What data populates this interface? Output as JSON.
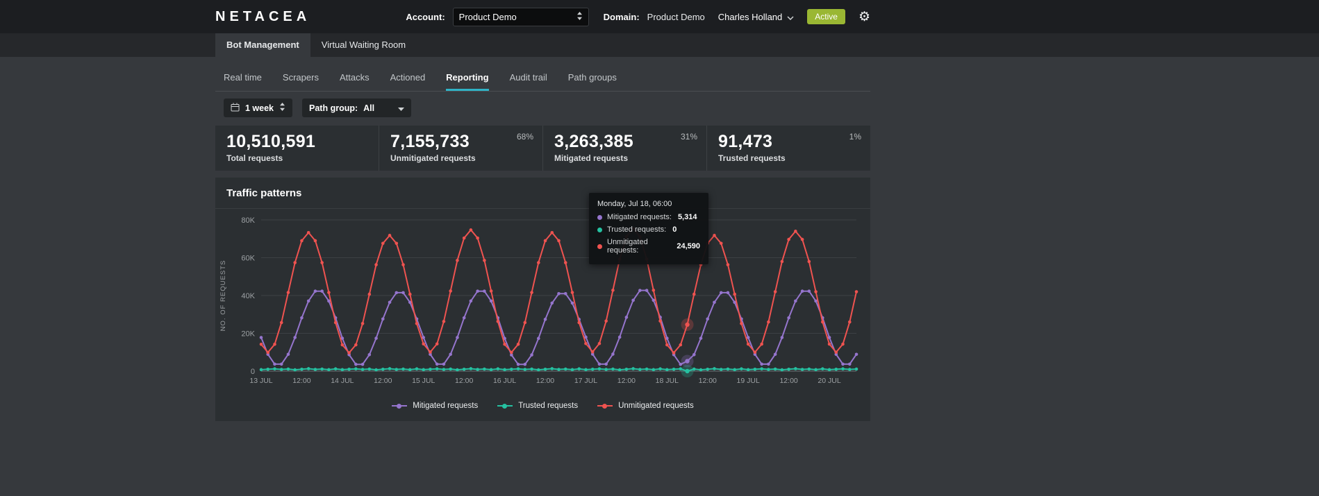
{
  "topbar": {
    "logo": "NETACEA",
    "account_label": "Account:",
    "account_value": "Product Demo",
    "domain_label": "Domain:",
    "domain_value": "Product Demo",
    "user_name": "Charles Holland",
    "status_badge": "Active",
    "settings_icon": "⚙"
  },
  "product_tabs": [
    {
      "label": "Bot Management",
      "active": true
    },
    {
      "label": "Virtual Waiting Room",
      "active": false
    }
  ],
  "sub_nav": [
    {
      "label": "Real time",
      "active": false
    },
    {
      "label": "Scrapers",
      "active": false
    },
    {
      "label": "Attacks",
      "active": false
    },
    {
      "label": "Actioned",
      "active": false
    },
    {
      "label": "Reporting",
      "active": true
    },
    {
      "label": "Audit trail",
      "active": false
    },
    {
      "label": "Path groups",
      "active": false
    }
  ],
  "filters": {
    "date_range": "1 week",
    "path_group_label": "Path group:",
    "path_group_value": "All"
  },
  "stats": [
    {
      "value": "10,510,591",
      "label": "Total requests",
      "percent": ""
    },
    {
      "value": "7,155,733",
      "label": "Unmitigated requests",
      "percent": "68%"
    },
    {
      "value": "3,263,385",
      "label": "Mitigated requests",
      "percent": "31%"
    },
    {
      "value": "91,473",
      "label": "Trusted requests",
      "percent": "1%"
    }
  ],
  "panel": {
    "title": "Traffic patterns"
  },
  "tooltip": {
    "title": "Monday, Jul 18, 06:00",
    "rows": [
      {
        "label": "Mitigated requests:",
        "value": "5,314"
      },
      {
        "label": "Trusted requests:",
        "value": "0"
      },
      {
        "label": "Unmitigated requests:",
        "value": "24,590"
      }
    ]
  },
  "colors": {
    "accent_underline": "#2fb3c6",
    "badge_bg": "#9ab733",
    "mitigated": "#9575cd",
    "trusted": "#25c1a1",
    "unmitigated": "#ef5350"
  },
  "chart_data": {
    "type": "line",
    "title": "Traffic patterns",
    "xlabel": "",
    "ylabel": "NO. OF REQUESTS",
    "ylim": [
      0,
      80000
    ],
    "values_unit": "thousands_of_requests",
    "grid": "horizontal",
    "legend_position": "bottom",
    "x_start": "Jul 13 00:00",
    "x_interval_hours": 2,
    "hover_index": 63,
    "y_ticks": [
      {
        "v": 0,
        "label": "0"
      },
      {
        "v": 20,
        "label": "20K"
      },
      {
        "v": 40,
        "label": "40K"
      },
      {
        "v": 60,
        "label": "60K"
      },
      {
        "v": 80,
        "label": "80K"
      }
    ],
    "x_ticks": [
      {
        "index": 0,
        "label": "13 JUL"
      },
      {
        "index": 6,
        "label": "12:00"
      },
      {
        "index": 12,
        "label": "14 JUL"
      },
      {
        "index": 18,
        "label": "12:00"
      },
      {
        "index": 24,
        "label": "15 JUL"
      },
      {
        "index": 30,
        "label": "12:00"
      },
      {
        "index": 36,
        "label": "16 JUL"
      },
      {
        "index": 42,
        "label": "12:00"
      },
      {
        "index": 48,
        "label": "17 JUL"
      },
      {
        "index": 54,
        "label": "12:00"
      },
      {
        "index": 60,
        "label": "18 JUL"
      },
      {
        "index": 66,
        "label": "12:00"
      },
      {
        "index": 72,
        "label": "19 JUL"
      },
      {
        "index": 78,
        "label": "12:00"
      },
      {
        "index": 84,
        "label": "20 JUL"
      }
    ],
    "series": [
      {
        "name": "Mitigated requests",
        "color": "#9575cd",
        "values": [
          17.8,
          8.9,
          3.7,
          3.7,
          8.9,
          17.8,
          28.2,
          37.1,
          42.3,
          42.3,
          37.1,
          28.2,
          17.4,
          8.7,
          3.6,
          3.6,
          8.7,
          17.4,
          27.6,
          36.4,
          41.5,
          41.5,
          36.4,
          27.6,
          17.8,
          8.9,
          3.7,
          3.7,
          8.9,
          17.8,
          28.2,
          37.1,
          42.3,
          42.3,
          37.1,
          28.2,
          17.3,
          8.6,
          3.6,
          3.6,
          8.6,
          17.3,
          27.4,
          36.0,
          41.0,
          41.0,
          36.0,
          27.4,
          18.0,
          9.0,
          3.7,
          3.7,
          9.0,
          18.0,
          28.5,
          37.5,
          42.7,
          42.7,
          37.5,
          28.5,
          17.4,
          8.7,
          3.6,
          5.3,
          8.7,
          17.4,
          27.6,
          36.4,
          41.5,
          41.5,
          36.4,
          27.6,
          17.8,
          8.9,
          3.7,
          3.7,
          8.9,
          17.8,
          28.2,
          37.1,
          42.3,
          42.3,
          37.1,
          28.2,
          17.8,
          8.9,
          3.7,
          3.7,
          8.9
        ]
      },
      {
        "name": "Trusted requests",
        "color": "#25c1a1",
        "values": [
          0.8,
          1.0,
          1.2,
          0.9,
          1.1,
          0.7,
          1.0,
          1.3,
          0.9,
          1.1,
          0.8,
          1.2,
          0.8,
          1.0,
          1.2,
          0.9,
          1.1,
          0.7,
          1.0,
          1.3,
          0.9,
          1.1,
          0.8,
          1.2,
          0.8,
          1.0,
          1.2,
          0.9,
          1.1,
          0.7,
          1.0,
          1.3,
          0.9,
          1.1,
          0.8,
          1.2,
          0.8,
          1.0,
          1.2,
          0.9,
          1.1,
          0.7,
          1.0,
          1.3,
          0.9,
          1.1,
          0.8,
          1.2,
          0.8,
          1.0,
          1.2,
          0.9,
          1.1,
          0.7,
          1.0,
          1.3,
          0.9,
          1.1,
          0.8,
          1.2,
          0.8,
          1.0,
          1.2,
          0.0,
          1.1,
          0.7,
          1.0,
          1.3,
          0.9,
          1.1,
          0.8,
          1.2,
          0.8,
          1.0,
          1.2,
          0.9,
          1.1,
          0.7,
          1.0,
          1.3,
          0.9,
          1.1,
          0.8,
          1.2,
          0.8,
          1.0,
          1.2,
          0.9,
          1.1
        ]
      },
      {
        "name": "Unmitigated requests",
        "color": "#ef5350",
        "values": [
          14.2,
          9.9,
          14.2,
          25.7,
          41.6,
          57.4,
          69.0,
          73.3,
          69.0,
          57.4,
          41.6,
          25.7,
          13.9,
          9.7,
          13.9,
          25.2,
          40.7,
          56.3,
          67.6,
          71.8,
          67.6,
          56.3,
          40.7,
          25.2,
          14.4,
          10.1,
          14.4,
          26.3,
          42.4,
          58.6,
          70.4,
          74.7,
          70.4,
          58.6,
          42.4,
          26.3,
          14.2,
          9.9,
          14.2,
          25.7,
          41.6,
          57.4,
          69.0,
          73.3,
          69.0,
          57.4,
          41.6,
          25.7,
          14.6,
          10.2,
          14.6,
          26.5,
          42.8,
          59.2,
          71.1,
          75.5,
          71.1,
          59.2,
          42.8,
          26.5,
          13.9,
          9.7,
          13.9,
          24.6,
          40.7,
          56.3,
          67.6,
          71.8,
          67.6,
          56.3,
          40.7,
          25.2,
          14.3,
          10.0,
          14.3,
          26.0,
          42.0,
          58.0,
          69.7,
          74.0,
          69.7,
          58.0,
          42.0,
          26.0,
          14.3,
          10.0,
          14.3,
          26.0,
          42.0
        ]
      }
    ]
  }
}
